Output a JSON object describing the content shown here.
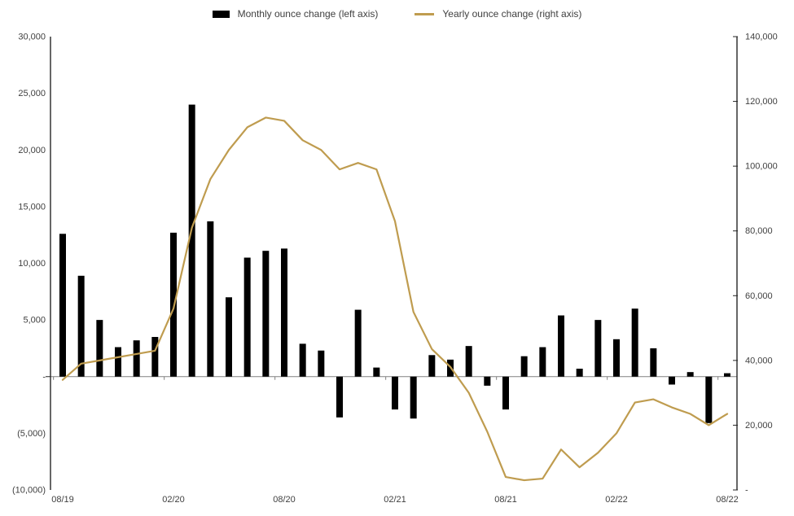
{
  "legend": [
    {
      "label": "Monthly ounce change (left axis)",
      "swatch": "bar",
      "color": "#000000"
    },
    {
      "label": "Yearly ounce change (right axis)",
      "swatch": "line",
      "color": "#BF9C4F"
    }
  ],
  "chart_data": {
    "type": "combo",
    "title": "",
    "grid": false,
    "legend_position": "top",
    "colors": {
      "bar": "#000000",
      "line": "#BF9C4F",
      "axis_line": "#262626",
      "zero_line": "#808080",
      "text": "#404040"
    },
    "x": [
      "08/19",
      "09/19",
      "10/19",
      "11/19",
      "12/19",
      "01/20",
      "02/20",
      "03/20",
      "04/20",
      "05/20",
      "06/20",
      "07/20",
      "08/20",
      "09/20",
      "10/20",
      "11/20",
      "12/20",
      "01/21",
      "02/21",
      "03/21",
      "04/21",
      "05/21",
      "06/21",
      "07/21",
      "08/21",
      "09/21",
      "10/21",
      "11/21",
      "12/21",
      "01/22",
      "02/22",
      "03/22",
      "04/22",
      "05/22",
      "06/22",
      "07/22",
      "08/22"
    ],
    "series": [
      {
        "name": "Monthly ounce change (left axis)",
        "type": "bar",
        "axis": "left",
        "color": "#000000",
        "values": [
          12600,
          8900,
          5000,
          2600,
          3200,
          3500,
          12700,
          24000,
          13700,
          7000,
          10500,
          11100,
          11300,
          2900,
          2300,
          -3600,
          5900,
          800,
          -2900,
          -3700,
          1900,
          1500,
          2700,
          -800,
          -2900,
          1800,
          2600,
          5400,
          700,
          5000,
          3300,
          6000,
          2500,
          -700,
          400,
          -4100,
          300
        ]
      },
      {
        "name": "Yearly ounce change (right axis)",
        "type": "line",
        "axis": "right",
        "color": "#BF9C4F",
        "values": [
          34000,
          39000,
          40000,
          41000,
          42000,
          43000,
          56000,
          81000,
          96000,
          105000,
          112000,
          115000,
          114000,
          108000,
          105000,
          99000,
          101000,
          99000,
          83000,
          55000,
          43500,
          38000,
          30000,
          18000,
          4000,
          3000,
          3500,
          12500,
          7000,
          11500,
          17500,
          27000,
          28000,
          25500,
          23500,
          20000,
          23500
        ]
      }
    ],
    "left_axis": {
      "min": -10000,
      "max": 30000,
      "step": 5000,
      "tick_values": [
        30000,
        25000,
        20000,
        15000,
        10000,
        5000,
        0,
        -5000,
        -10000
      ],
      "tick_labels": [
        "30,000",
        "25,000",
        "20,000",
        "15,000",
        "10,000",
        "5,000",
        "-",
        "(5,000)",
        "(10,000)"
      ]
    },
    "right_axis": {
      "min": 0,
      "max": 140000,
      "step": 20000,
      "tick_values": [
        140000,
        120000,
        100000,
        80000,
        60000,
        40000,
        20000,
        0
      ],
      "tick_labels": [
        "140,000",
        "120,000",
        "100,000",
        "80,000",
        "60,000",
        "40,000",
        "20,000",
        "-"
      ]
    },
    "x_tick_indices": [
      0,
      6,
      12,
      18,
      24,
      30,
      36
    ],
    "x_tick_labels": [
      "08/19",
      "02/20",
      "08/20",
      "02/21",
      "08/21",
      "02/22",
      "08/22"
    ]
  }
}
